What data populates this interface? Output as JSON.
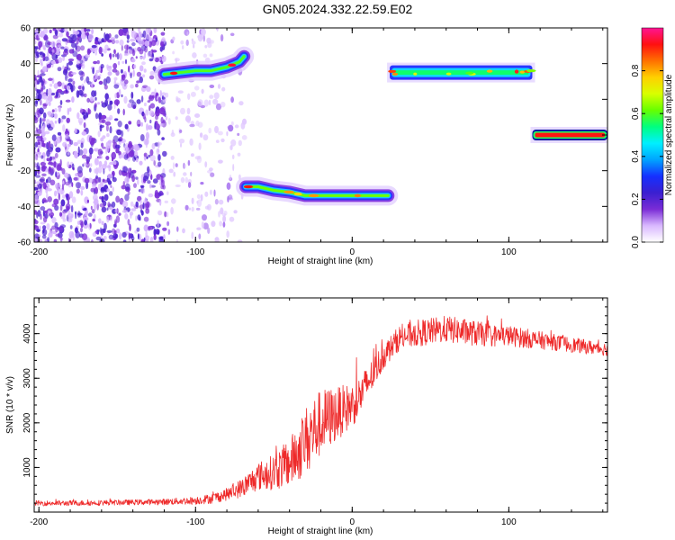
{
  "title": "GN05.2024.332.22.59.E02",
  "chart_data": [
    {
      "type": "heatmap",
      "xlabel": "Height of straight line (km)",
      "ylabel": "Frequency (Hz)",
      "xlim": [
        -203,
        163
      ],
      "ylim": [
        -60,
        60
      ],
      "xticks": [
        -200,
        -100,
        0,
        100
      ],
      "yticks": [
        -60,
        -40,
        -20,
        0,
        20,
        40,
        60
      ],
      "colorbar": {
        "label": "Normalized spectral amplitude",
        "range": [
          0,
          1
        ],
        "ticks": [
          "0.0",
          "0.2",
          "0.4",
          "0.6",
          "0.8"
        ],
        "tick_values": [
          0,
          0.2,
          0.4,
          0.6,
          0.8
        ],
        "colors": [
          "#ffffff",
          "#d9b8ff",
          "#7a2cd6",
          "#3a1fd0",
          "#1530ff",
          "#00a4ff",
          "#00f0ff",
          "#00ff80",
          "#66ff00",
          "#d8ff00",
          "#ffd000",
          "#ff7000",
          "#ff1010",
          "#ff1493"
        ]
      },
      "features": [
        {
          "name": "noise",
          "x_range": [
            -203,
            -68
          ],
          "freq_range": [
            -60,
            60
          ],
          "amplitude": 0.12
        },
        {
          "name": "band_a",
          "points": [
            [
              -120,
              34
            ],
            [
              -110,
              35
            ],
            [
              -100,
              36
            ],
            [
              -90,
              36
            ],
            [
              -80,
              38
            ],
            [
              -72,
              41
            ],
            [
              -69,
              44
            ]
          ],
          "amplitude": 0.6
        },
        {
          "name": "band_b",
          "points": [
            [
              -68,
              -29
            ],
            [
              -60,
              -29
            ],
            [
              -50,
              -31
            ],
            [
              -40,
              -32
            ],
            [
              -30,
              -34
            ],
            [
              -20,
              -34
            ],
            [
              -10,
              -34
            ],
            [
              0,
              -34
            ],
            [
              10,
              -34
            ],
            [
              23,
              -34
            ]
          ],
          "amplitude": 0.62
        },
        {
          "name": "band_c",
          "x_range": [
            24,
            115
          ],
          "freq": 35,
          "amplitude": 0.55
        },
        {
          "name": "band_d",
          "x_range": [
            115,
            163
          ],
          "freq": 0,
          "amplitude": 0.92
        }
      ]
    },
    {
      "type": "line",
      "xlabel": "Height of straight line (km)",
      "ylabel": "SNR (10 * v/v)",
      "xlim": [
        -203,
        163
      ],
      "ylim": [
        0,
        4800
      ],
      "xticks": [
        -200,
        -100,
        0,
        100
      ],
      "yticks": [
        1000,
        2000,
        3000,
        4000
      ],
      "color": "#ee2a2a",
      "series": [
        {
          "x": [
            -203,
            -180,
            -160,
            -140,
            -120,
            -100,
            -90,
            -80,
            -70,
            -60,
            -50,
            -40,
            -35,
            -30,
            -25,
            -20,
            -15,
            -10,
            -5,
            0,
            5,
            10,
            15,
            20,
            25,
            30,
            40,
            50,
            60,
            70,
            80,
            90,
            100,
            110,
            120,
            130,
            140,
            150,
            163
          ],
          "values": [
            200,
            200,
            210,
            220,
            230,
            260,
            300,
            400,
            550,
            800,
            900,
            1100,
            1300,
            1600,
            1800,
            2000,
            2100,
            2200,
            2300,
            2400,
            2600,
            2900,
            3200,
            3500,
            3700,
            3900,
            4000,
            4050,
            4100,
            4050,
            4000,
            3950,
            3950,
            3900,
            3850,
            3800,
            3750,
            3700,
            3650
          ],
          "noise": [
            60,
            60,
            60,
            60,
            70,
            90,
            110,
            140,
            220,
            320,
            400,
            550,
            650,
            750,
            800,
            750,
            700,
            600,
            550,
            500,
            450,
            400,
            350,
            300,
            280,
            280,
            300,
            300,
            300,
            300,
            280,
            250,
            230,
            220,
            200,
            180,
            170,
            160,
            150
          ]
        }
      ]
    }
  ]
}
